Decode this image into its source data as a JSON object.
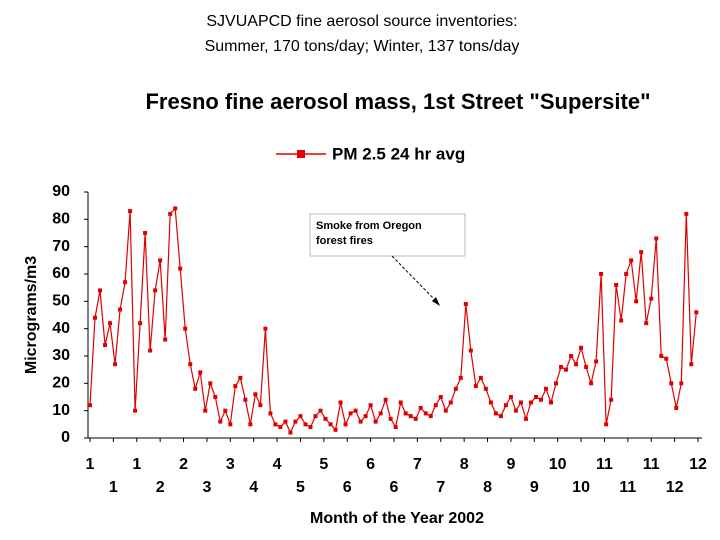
{
  "chart_data": {
    "type": "line",
    "header_lines": [
      "SJVUAPCD fine aerosol source inventories:",
      "Summer, 170 tons/day; Winter, 137 tons/day"
    ],
    "title": "Fresno fine aerosol mass, 1st Street \"Supersite\"",
    "x_label": "Month of the Year 2002",
    "y_label": "Micrograms/m3",
    "annotation": [
      "Smoke from Oregon",
      "forest fires"
    ],
    "xlim": [
      0,
      364
    ],
    "xticks": [
      {
        "value": 0,
        "label": "1"
      },
      {
        "value": 14,
        "label": "1"
      },
      {
        "value": 28,
        "label": "1"
      },
      {
        "value": 42,
        "label": "2"
      },
      {
        "value": 56,
        "label": "2"
      },
      {
        "value": 70,
        "label": "3"
      },
      {
        "value": 84,
        "label": "3"
      },
      {
        "value": 98,
        "label": "4"
      },
      {
        "value": 112,
        "label": "4"
      },
      {
        "value": 126,
        "label": "5"
      },
      {
        "value": 140,
        "label": "5"
      },
      {
        "value": 154,
        "label": "6"
      },
      {
        "value": 168,
        "label": "6"
      },
      {
        "value": 182,
        "label": "6"
      },
      {
        "value": 196,
        "label": "7"
      },
      {
        "value": 210,
        "label": "7"
      },
      {
        "value": 224,
        "label": "8"
      },
      {
        "value": 238,
        "label": "8"
      },
      {
        "value": 252,
        "label": "9"
      },
      {
        "value": 266,
        "label": "9"
      },
      {
        "value": 280,
        "label": "10"
      },
      {
        "value": 294,
        "label": "10"
      },
      {
        "value": 308,
        "label": "11"
      },
      {
        "value": 322,
        "label": "11"
      },
      {
        "value": 336,
        "label": "11"
      },
      {
        "value": 350,
        "label": "12"
      },
      {
        "value": 364,
        "label": "12"
      }
    ],
    "ylim": [
      0,
      90
    ],
    "yticks": [
      0,
      10,
      20,
      30,
      40,
      50,
      60,
      70,
      80,
      90
    ],
    "grid": false,
    "series": [
      {
        "name": "PM 2.5 24 hr avg",
        "color": "#e00000",
        "x": [
          0,
          3,
          6,
          9,
          12,
          15,
          18,
          21,
          24,
          27,
          30,
          33,
          36,
          39,
          42,
          45,
          48,
          51,
          54,
          57,
          60,
          63,
          66,
          69,
          72,
          75,
          78,
          81,
          84,
          87,
          90,
          93,
          96,
          99,
          102,
          105,
          108,
          111,
          114,
          117,
          120,
          123,
          126,
          129,
          132,
          135,
          138,
          141,
          144,
          147,
          150,
          153,
          156,
          159,
          162,
          165,
          168,
          171,
          174,
          177,
          180,
          183,
          186,
          189,
          192,
          195,
          198,
          201,
          204,
          207,
          210,
          213,
          216,
          219,
          222,
          225,
          228,
          231,
          234,
          237,
          240,
          243,
          246,
          249,
          252,
          255,
          258,
          261,
          264,
          267,
          270,
          273,
          276,
          279,
          282,
          285,
          288,
          291,
          294,
          297,
          300,
          303,
          306,
          309,
          312,
          315,
          318,
          321,
          324,
          327,
          330,
          333,
          336,
          339,
          342,
          345,
          348,
          351,
          354,
          357,
          360,
          363
        ],
        "values": [
          12,
          44,
          54,
          34,
          42,
          27,
          47,
          57,
          83,
          10,
          42,
          75,
          32,
          54,
          65,
          36,
          82,
          84,
          62,
          40,
          27,
          18,
          24,
          10,
          20,
          15,
          6,
          10,
          5,
          19,
          22,
          14,
          5,
          16,
          12,
          40,
          9,
          5,
          4,
          6,
          2,
          6,
          8,
          5,
          4,
          8,
          10,
          7,
          5,
          3,
          13,
          5,
          9,
          10,
          6,
          8,
          12,
          6,
          9,
          14,
          7,
          4,
          13,
          9,
          8,
          7,
          11,
          9,
          8,
          12,
          15,
          10,
          13,
          18,
          22,
          49,
          32,
          19,
          22,
          18,
          13,
          9,
          8,
          12,
          15,
          10,
          13,
          7,
          13,
          15,
          14,
          18,
          13,
          20,
          26,
          25,
          30,
          27,
          33,
          26,
          20,
          28,
          60,
          5,
          14,
          56,
          43,
          60,
          65,
          50,
          68,
          42,
          51,
          73,
          30,
          29,
          20,
          11,
          20,
          82,
          27,
          46
        ]
      }
    ]
  }
}
